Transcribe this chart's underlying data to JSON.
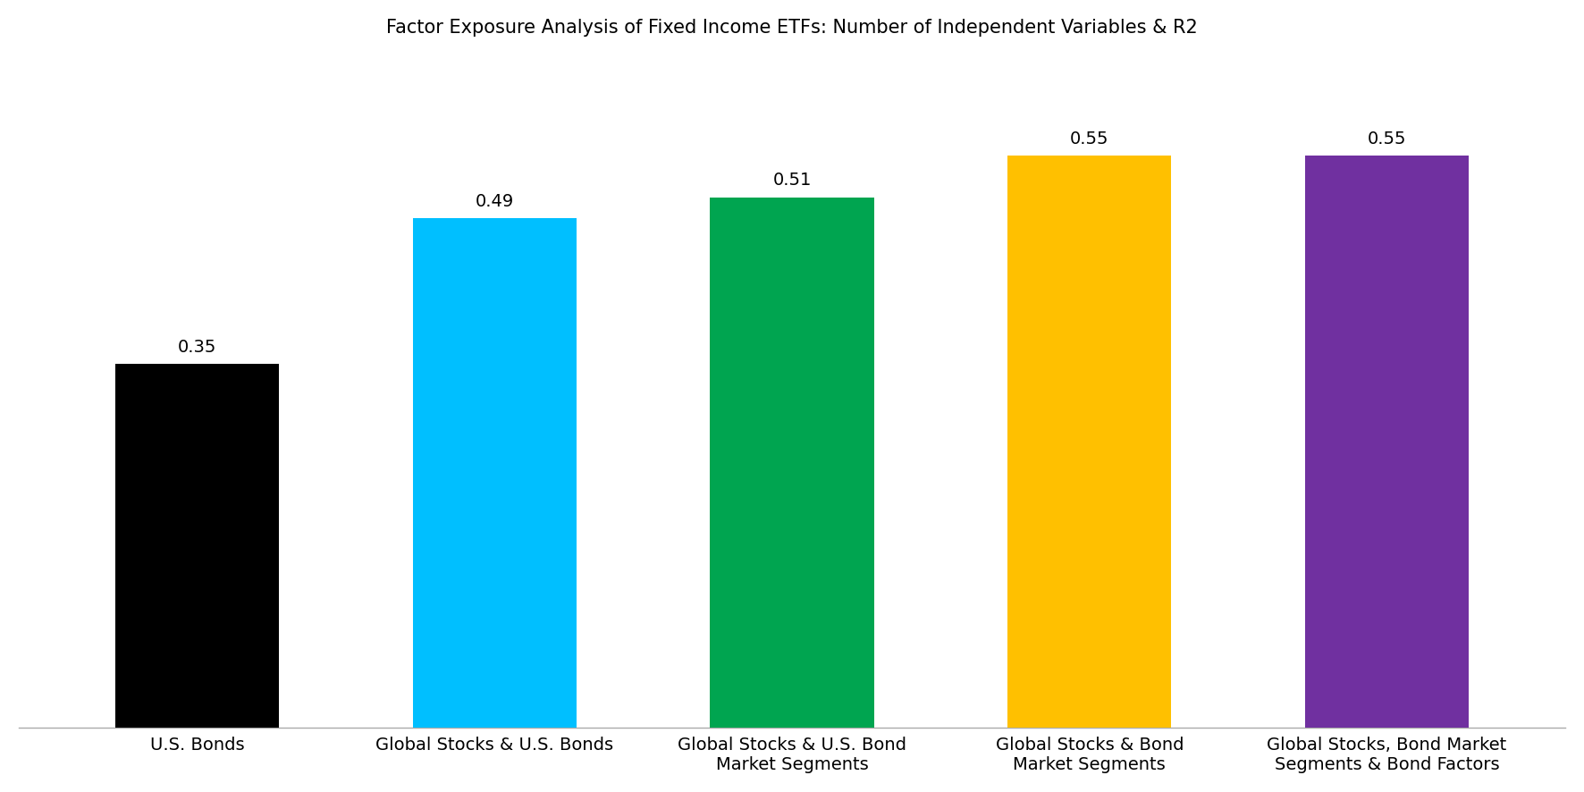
{
  "title": "Factor Exposure Analysis of Fixed Income ETFs: Number of Independent Variables & R2",
  "categories": [
    "U.S. Bonds",
    "Global Stocks & U.S. Bonds",
    "Global Stocks & U.S. Bond\nMarket Segments",
    "Global Stocks & Bond\nMarket Segments",
    "Global Stocks, Bond Market\nSegments & Bond Factors"
  ],
  "values": [
    0.35,
    0.49,
    0.51,
    0.55,
    0.55
  ],
  "bar_colors": [
    "#000000",
    "#00BFFF",
    "#00A550",
    "#FFC000",
    "#7030A0"
  ],
  "ylim": [
    0,
    0.65
  ],
  "title_fontsize": 15,
  "label_fontsize": 14,
  "value_fontsize": 14,
  "bar_width": 0.55,
  "background_color": "#ffffff"
}
